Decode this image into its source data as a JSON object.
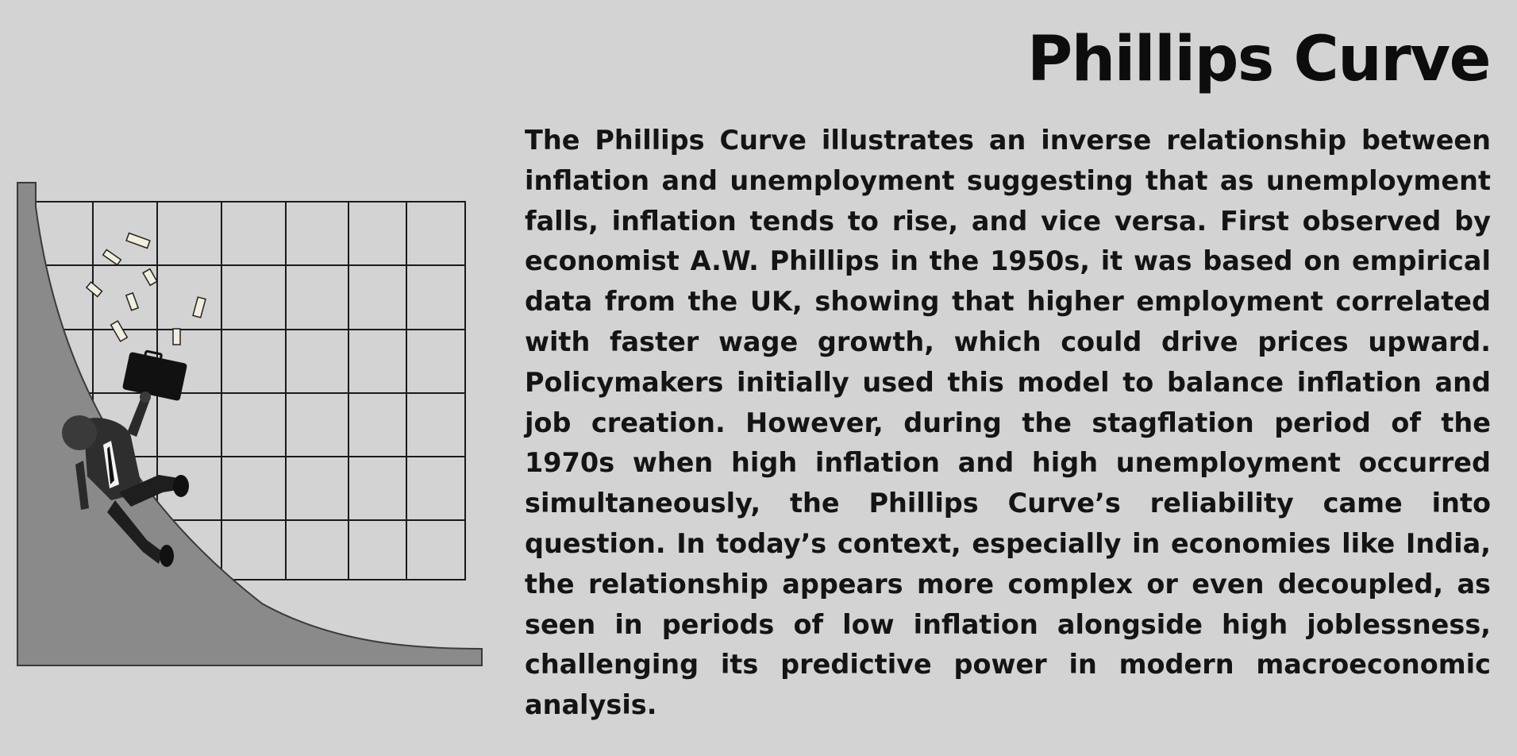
{
  "page": {
    "title": "Phillips Curve",
    "paragraph": "The Phillips Curve illustrates an inverse relationship between inflation and unemployment suggesting that as unemployment falls, inflation tends to rise, and vice versa. First observed by economist A.W. Phillips in the 1950s, it was based on empirical data from the UK, showing that higher employment correlated with faster wage growth, which could drive prices upward. Policymakers initially used this model to balance inflation and job creation. However, during the stagflation period of the 1970s when high inflation and high unemployment occurred simultaneously, the Phillips Curve’s reliability came into question. In today’s context, especially in economies like India, the relationship appears more complex or even decoupled, as seen in periods of low inflation alongside high joblessness, challenging its predictive power in modern macroeconomic analysis."
  },
  "colors": {
    "background": "#d3d3d3",
    "text": "#141414",
    "curve_fill": "#8a8a8a",
    "grid_line": "#1a1a1a"
  },
  "illustration": {
    "icon": "man-sliding-down-curve-icon"
  }
}
